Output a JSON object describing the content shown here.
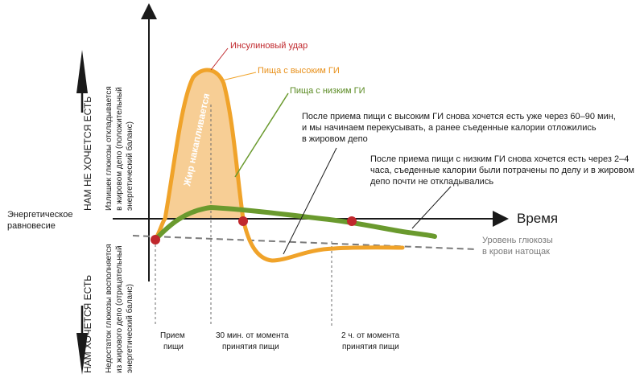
{
  "colors": {
    "axis": "#1a1a1a",
    "high_gi": "#f0a32a",
    "high_gi_fill": "#f6c98a",
    "low_gi": "#6a9a2e",
    "baseline": "#7a7a7a",
    "point": "#c0282d",
    "label_red": "#c0282d",
    "text": "#1a1a1a",
    "grey_text": "#7a7a7a"
  },
  "labels": {
    "time_axis": "Время",
    "energy_balance": [
      "Энергетическое",
      "равновесие"
    ],
    "not_hungry": "НАМ НЕ ХОЧЕТСЯ ЕСТЬ",
    "hungry": "НАМ ХОЧЕТСЯ ЕСТЬ",
    "excess_glucose": [
      "Излишек глюкозы откладывается",
      "в жировом депо (положительный",
      "энергетический баланс)"
    ],
    "glucose_deficit": [
      "Недостаток глюкозы восполняется",
      "из жирового депо (отрицательный",
      "энергетический баланс)"
    ],
    "fat_accumulates": "Жир накапливается",
    "insulin_spike": "Инсулиновый удар",
    "high_gi_food": "Пища с высоким ГИ",
    "low_gi_food": "Пища с низким ГИ",
    "high_gi_note": [
      "После приема пищи с высоким ГИ снова хочется есть уже через 60–90 мин,",
      "и мы начинаем перекусывать, а ранее съеденные калории отложились",
      "в жировом депо"
    ],
    "low_gi_note": [
      "После приема пищи с низким ГИ снова хочется есть через 2–4",
      "часа, съеденные калории были потрачены по делу и в жировом",
      "депо почти не откладывались"
    ],
    "fasting_glucose": [
      "Уровень глюкозы",
      "в крови натощак"
    ],
    "markers": [
      [
        "Прием",
        "пищи"
      ],
      [
        "30 мин. от момента",
        "принятия пищи"
      ],
      [
        "2 ч. от момента",
        "принятия пищи"
      ]
    ]
  }
}
